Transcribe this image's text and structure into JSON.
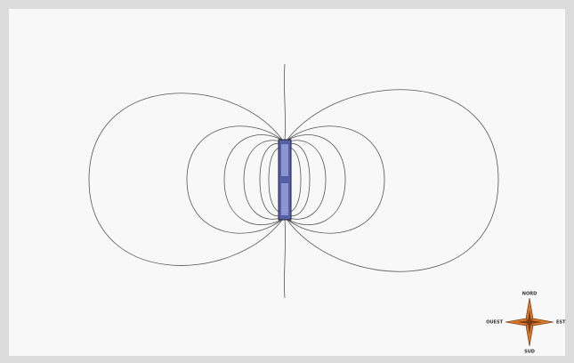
{
  "compass": {
    "north": "NORD",
    "east": "EST",
    "south": "SUD",
    "west": "OUEST"
  }
}
